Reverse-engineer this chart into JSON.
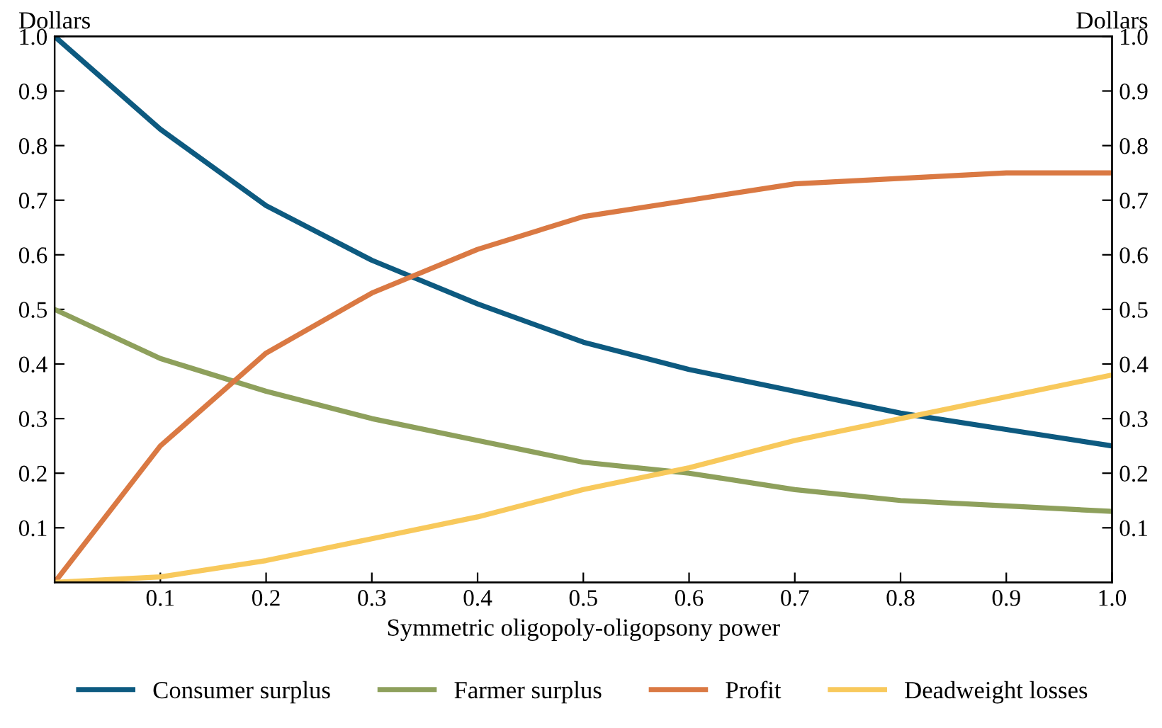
{
  "chart_data": {
    "type": "line",
    "xlabel": "Symmetric oligopoly-oligopsony power",
    "ylabel": "Dollars",
    "y2label": "Dollars",
    "x": [
      0,
      0.1,
      0.2,
      0.3,
      0.4,
      0.5,
      0.6,
      0.7,
      0.8,
      0.9,
      1.0
    ],
    "series": [
      {
        "name": "Consumer surplus",
        "color": "#0d5a80",
        "values": [
          1.0,
          0.83,
          0.69,
          0.59,
          0.51,
          0.44,
          0.39,
          0.35,
          0.31,
          0.28,
          0.25
        ]
      },
      {
        "name": "Farmer surplus",
        "color": "#8ea05c",
        "values": [
          0.5,
          0.41,
          0.35,
          0.3,
          0.26,
          0.22,
          0.2,
          0.17,
          0.15,
          0.14,
          0.13
        ]
      },
      {
        "name": "Profit",
        "color": "#da7943",
        "values": [
          0,
          0.25,
          0.42,
          0.53,
          0.61,
          0.67,
          0.7,
          0.73,
          0.74,
          0.75,
          0.75
        ]
      },
      {
        "name": "Deadweight losses",
        "color": "#f8c95c",
        "values": [
          0,
          0.01,
          0.04,
          0.08,
          0.12,
          0.17,
          0.21,
          0.26,
          0.3,
          0.34,
          0.38
        ]
      }
    ],
    "xlim": [
      0,
      1.0
    ],
    "xticks": [
      0.1,
      0.2,
      0.3,
      0.4,
      0.5,
      0.6,
      0.7,
      0.8,
      0.9,
      {
        "value": 1,
        "label": "1.0"
      }
    ],
    "ylim": [
      0,
      1.0
    ],
    "yticks": [
      0.1,
      0.2,
      0.3,
      0.4,
      0.5,
      0.6,
      0.7,
      0.8,
      0.9,
      {
        "value": 1,
        "label": "1.0"
      }
    ],
    "y2lim": [
      0,
      1.0
    ],
    "y2ticks": [
      0.1,
      0.2,
      0.3,
      0.4,
      0.5,
      0.6,
      0.7,
      0.8,
      0.9,
      {
        "value": 1,
        "label": "1.0"
      }
    ],
    "grid": false,
    "legend": "bottom",
    "marker": "none",
    "line_style": "solid"
  }
}
